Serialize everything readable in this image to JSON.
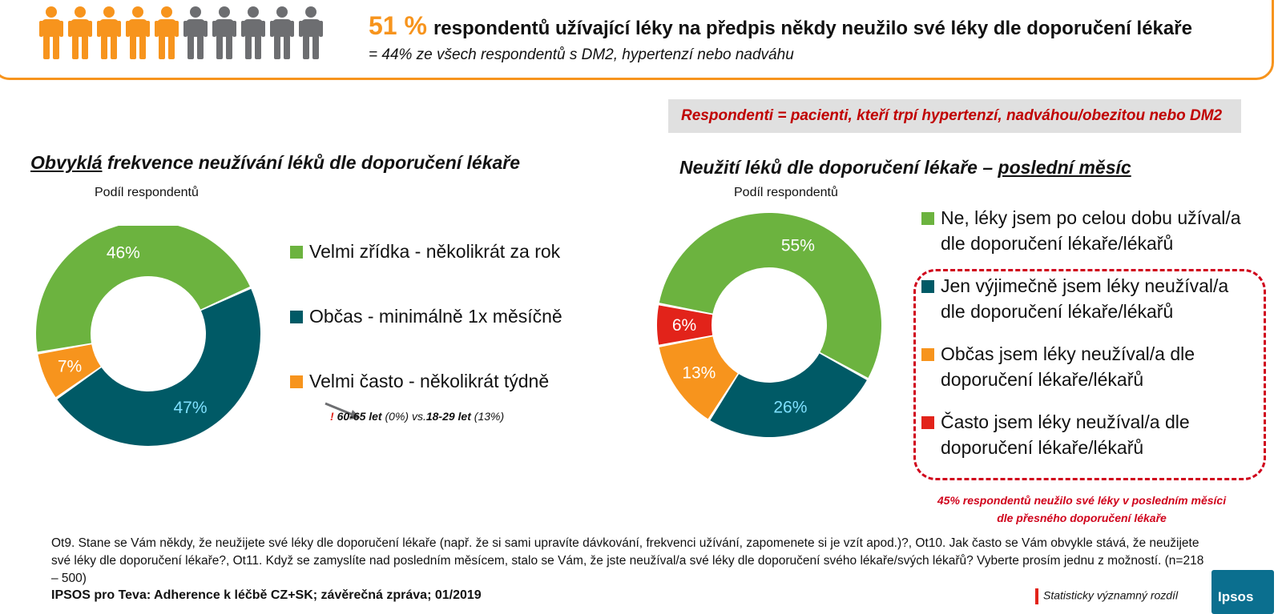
{
  "banner": {
    "headline_pct": "51 %",
    "headline_text": "respondentů užívající léky na předpis někdy neužilo své léky dle doporučení lékaře",
    "subline": "= 44% ze všech respondentů s DM2, hypertenzí nebo nadváhu",
    "people_total": 10,
    "people_highlighted": 5,
    "colors": {
      "highlight": "#f7941d",
      "rest": "#6d6e71",
      "border": "#f7941d"
    }
  },
  "respondents_note": "Respondenti = pacienti, kteří trpí hypertenzí, nadváhou/obezitou nebo DM2",
  "left_chart_title": {
    "underlined": "Obvyklá",
    "rest": " frekvence neužívání léků dle doporučení lékaře"
  },
  "right_chart_title": {
    "rest": "Neužití léků dle doporučení lékaře – ",
    "underlined": "poslední měsíc"
  },
  "left_note": {
    "excl": "!",
    "group1": "60-65 let",
    "val1": "(0%)",
    "vs": " vs.",
    "group2": "18-29 let",
    "val2": "(13%)"
  },
  "right_note": [
    "45% respondentů neužilo své léky v posledním měsíci",
    "dle přesného doporučení lékaře"
  ],
  "chart_data": [
    {
      "type": "pie",
      "title": "Obvyklá frekvence neužívání léků dle doporučení lékaře",
      "subtitle": "Podíl respondentů",
      "series": [
        {
          "name": "Velmi zřídka - několikrát za rok",
          "value": 46,
          "label": "46%",
          "color": "#6cb33f",
          "label_color": "#ffffff"
        },
        {
          "name": "Občas - minimálně 1x měsíčně",
          "value": 47,
          "label": "47%",
          "color": "#005a66",
          "label_color": "#7fe0ff"
        },
        {
          "name": "Velmi často - několikrát týdně",
          "value": 7,
          "label": "7%",
          "color": "#f7941d",
          "label_color": "#ffffff"
        }
      ]
    },
    {
      "type": "pie",
      "title": "Neužití léků dle doporučení lékaře – poslední měsíc",
      "subtitle": "Podíl respondentů",
      "series": [
        {
          "name": "Ne, léky jsem po celou dobu užíval/a dle doporučení lékaře/lékařů",
          "value": 55,
          "label": "55%",
          "color": "#6cb33f",
          "label_color": "#ffffff"
        },
        {
          "name": "Jen výjimečně jsem léky neužíval/a dle doporučení lékaře/lékařů",
          "value": 26,
          "label": "26%",
          "color": "#005a66",
          "label_color": "#7fe0ff"
        },
        {
          "name": "Občas jsem léky neužíval/a dle doporučení lékaře/lékařů",
          "value": 13,
          "label": "13%",
          "color": "#f7941d",
          "label_color": "#ffffff"
        },
        {
          "name": "Často jsem léky neužíval/a dle doporučení lékaře/lékařů",
          "value": 6,
          "label": "6%",
          "color": "#e2231a",
          "label_color": "#ffffff"
        }
      ]
    }
  ],
  "footnote": "Ot9. Stane se Vám někdy, že neužijete své léky dle doporučení lékaře (např. že si sami upravíte dávkování, frekvenci užívání, zapomenete si je vzít apod.)?, Ot10. Jak často se Vám obvykle stává, že neužijete své léky dle doporučení lékaře?, Ot11. Když se zamyslíte nad posledním měsícem, stalo se Vám, že jste neužíval/a své léky dle doporučení svého lékaře/svých lékařů? Vyberte prosím jednu z možností. (n=218 – 500)",
  "source": "IPSOS pro Teva: Adherence k léčbě CZ+SK; závěrečná zpráva; 01/2019",
  "stat_note": "Statisticky významný rozdíl",
  "logo_text": "Ipsos"
}
